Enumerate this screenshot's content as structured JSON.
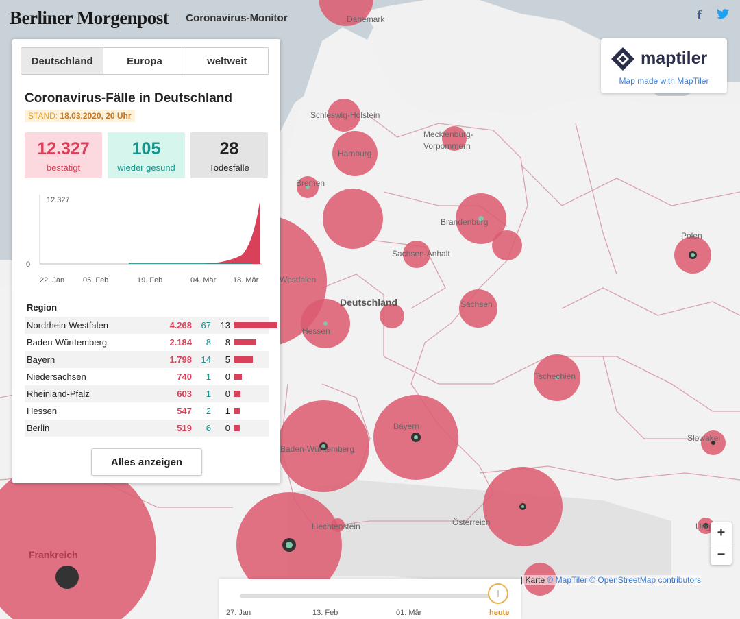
{
  "header": {
    "brand": "Berliner Morgenpost",
    "subtitle": "Coronavirus-Monitor",
    "facebook_icon": "facebook-icon",
    "twitter_icon": "twitter-icon"
  },
  "panel": {
    "tabs": [
      "Deutschland",
      "Europa",
      "weltweit"
    ],
    "active_tab": 0,
    "title": "Coronavirus-Fälle in Deutschland",
    "stand_label": "STAND:",
    "stand_value": "18.03.2020, 20 Uhr",
    "stats": {
      "confirmed": {
        "value": "12.327",
        "label": "bestätigt"
      },
      "recovered": {
        "value": "105",
        "label": "wieder gesund"
      },
      "deaths": {
        "value": "28",
        "label": "Todesfälle"
      }
    },
    "chart": {
      "y_max_label": "12.327",
      "y_min_label": "0",
      "x_labels": [
        "22. Jan",
        "05. Feb",
        "19. Feb",
        "04. Mär",
        "18. Mär"
      ]
    },
    "region_header": "Region",
    "regions": [
      {
        "name": "Nordrhein-Westfalen",
        "cases": "4.268",
        "recovered": "67",
        "deaths": "13",
        "share": 1.0
      },
      {
        "name": "Baden-Württemberg",
        "cases": "2.184",
        "recovered": "8",
        "deaths": "8",
        "share": 0.512
      },
      {
        "name": "Bayern",
        "cases": "1.798",
        "recovered": "14",
        "deaths": "5",
        "share": 0.421
      },
      {
        "name": "Niedersachsen",
        "cases": "740",
        "recovered": "1",
        "deaths": "0",
        "share": 0.173
      },
      {
        "name": "Rheinland-Pfalz",
        "cases": "603",
        "recovered": "1",
        "deaths": "0",
        "share": 0.141
      },
      {
        "name": "Hessen",
        "cases": "547",
        "recovered": "2",
        "deaths": "1",
        "share": 0.128
      },
      {
        "name": "Berlin",
        "cases": "519",
        "recovered": "6",
        "deaths": "0",
        "share": 0.122
      }
    ],
    "show_all_label": "Alles anzeigen"
  },
  "maptiler": {
    "name": "maptiler",
    "caption": "Map made with MapTiler",
    "logo_icon": "maptiler-logo-icon"
  },
  "map_labels": {
    "daenemark": "Dänemark",
    "schleswig": "Schleswig-Holstein",
    "mecklenburg_1": "Mecklenburg-",
    "mecklenburg_2": "Vorpommern",
    "hamburg": "Hamburg",
    "bremen": "Bremen",
    "brandenburg": "Brandenburg",
    "sachsen_anhalt": "Sachsen-Anhalt",
    "deutschland": "Deutschland",
    "sachsen": "Sachsen",
    "hessen": "Hessen",
    "westfalen": "Westfalen",
    "polen": "Polen",
    "tschechien": "Tschechien",
    "bayern": "Bayern",
    "baden": "Baden-Württemberg",
    "slowakei": "Slowakei",
    "liechtenstein": "Liechtenstein",
    "oesterreich": "Österreich",
    "frankreich": "Frankreich",
    "ungarn": "Ung"
  },
  "zoom": {
    "in": "+",
    "out": "−"
  },
  "attribution": {
    "karte": "| Karte",
    "maptiler": "© MapTiler",
    "osm": "© OpenStreetMap contributors"
  },
  "timeline": {
    "labels": [
      "27. Jan",
      "13. Feb",
      "01. Mär"
    ],
    "today": "heute"
  },
  "colors": {
    "case": "#d9415a",
    "recovered": "#17958c",
    "bubble": "#dc5a70"
  }
}
